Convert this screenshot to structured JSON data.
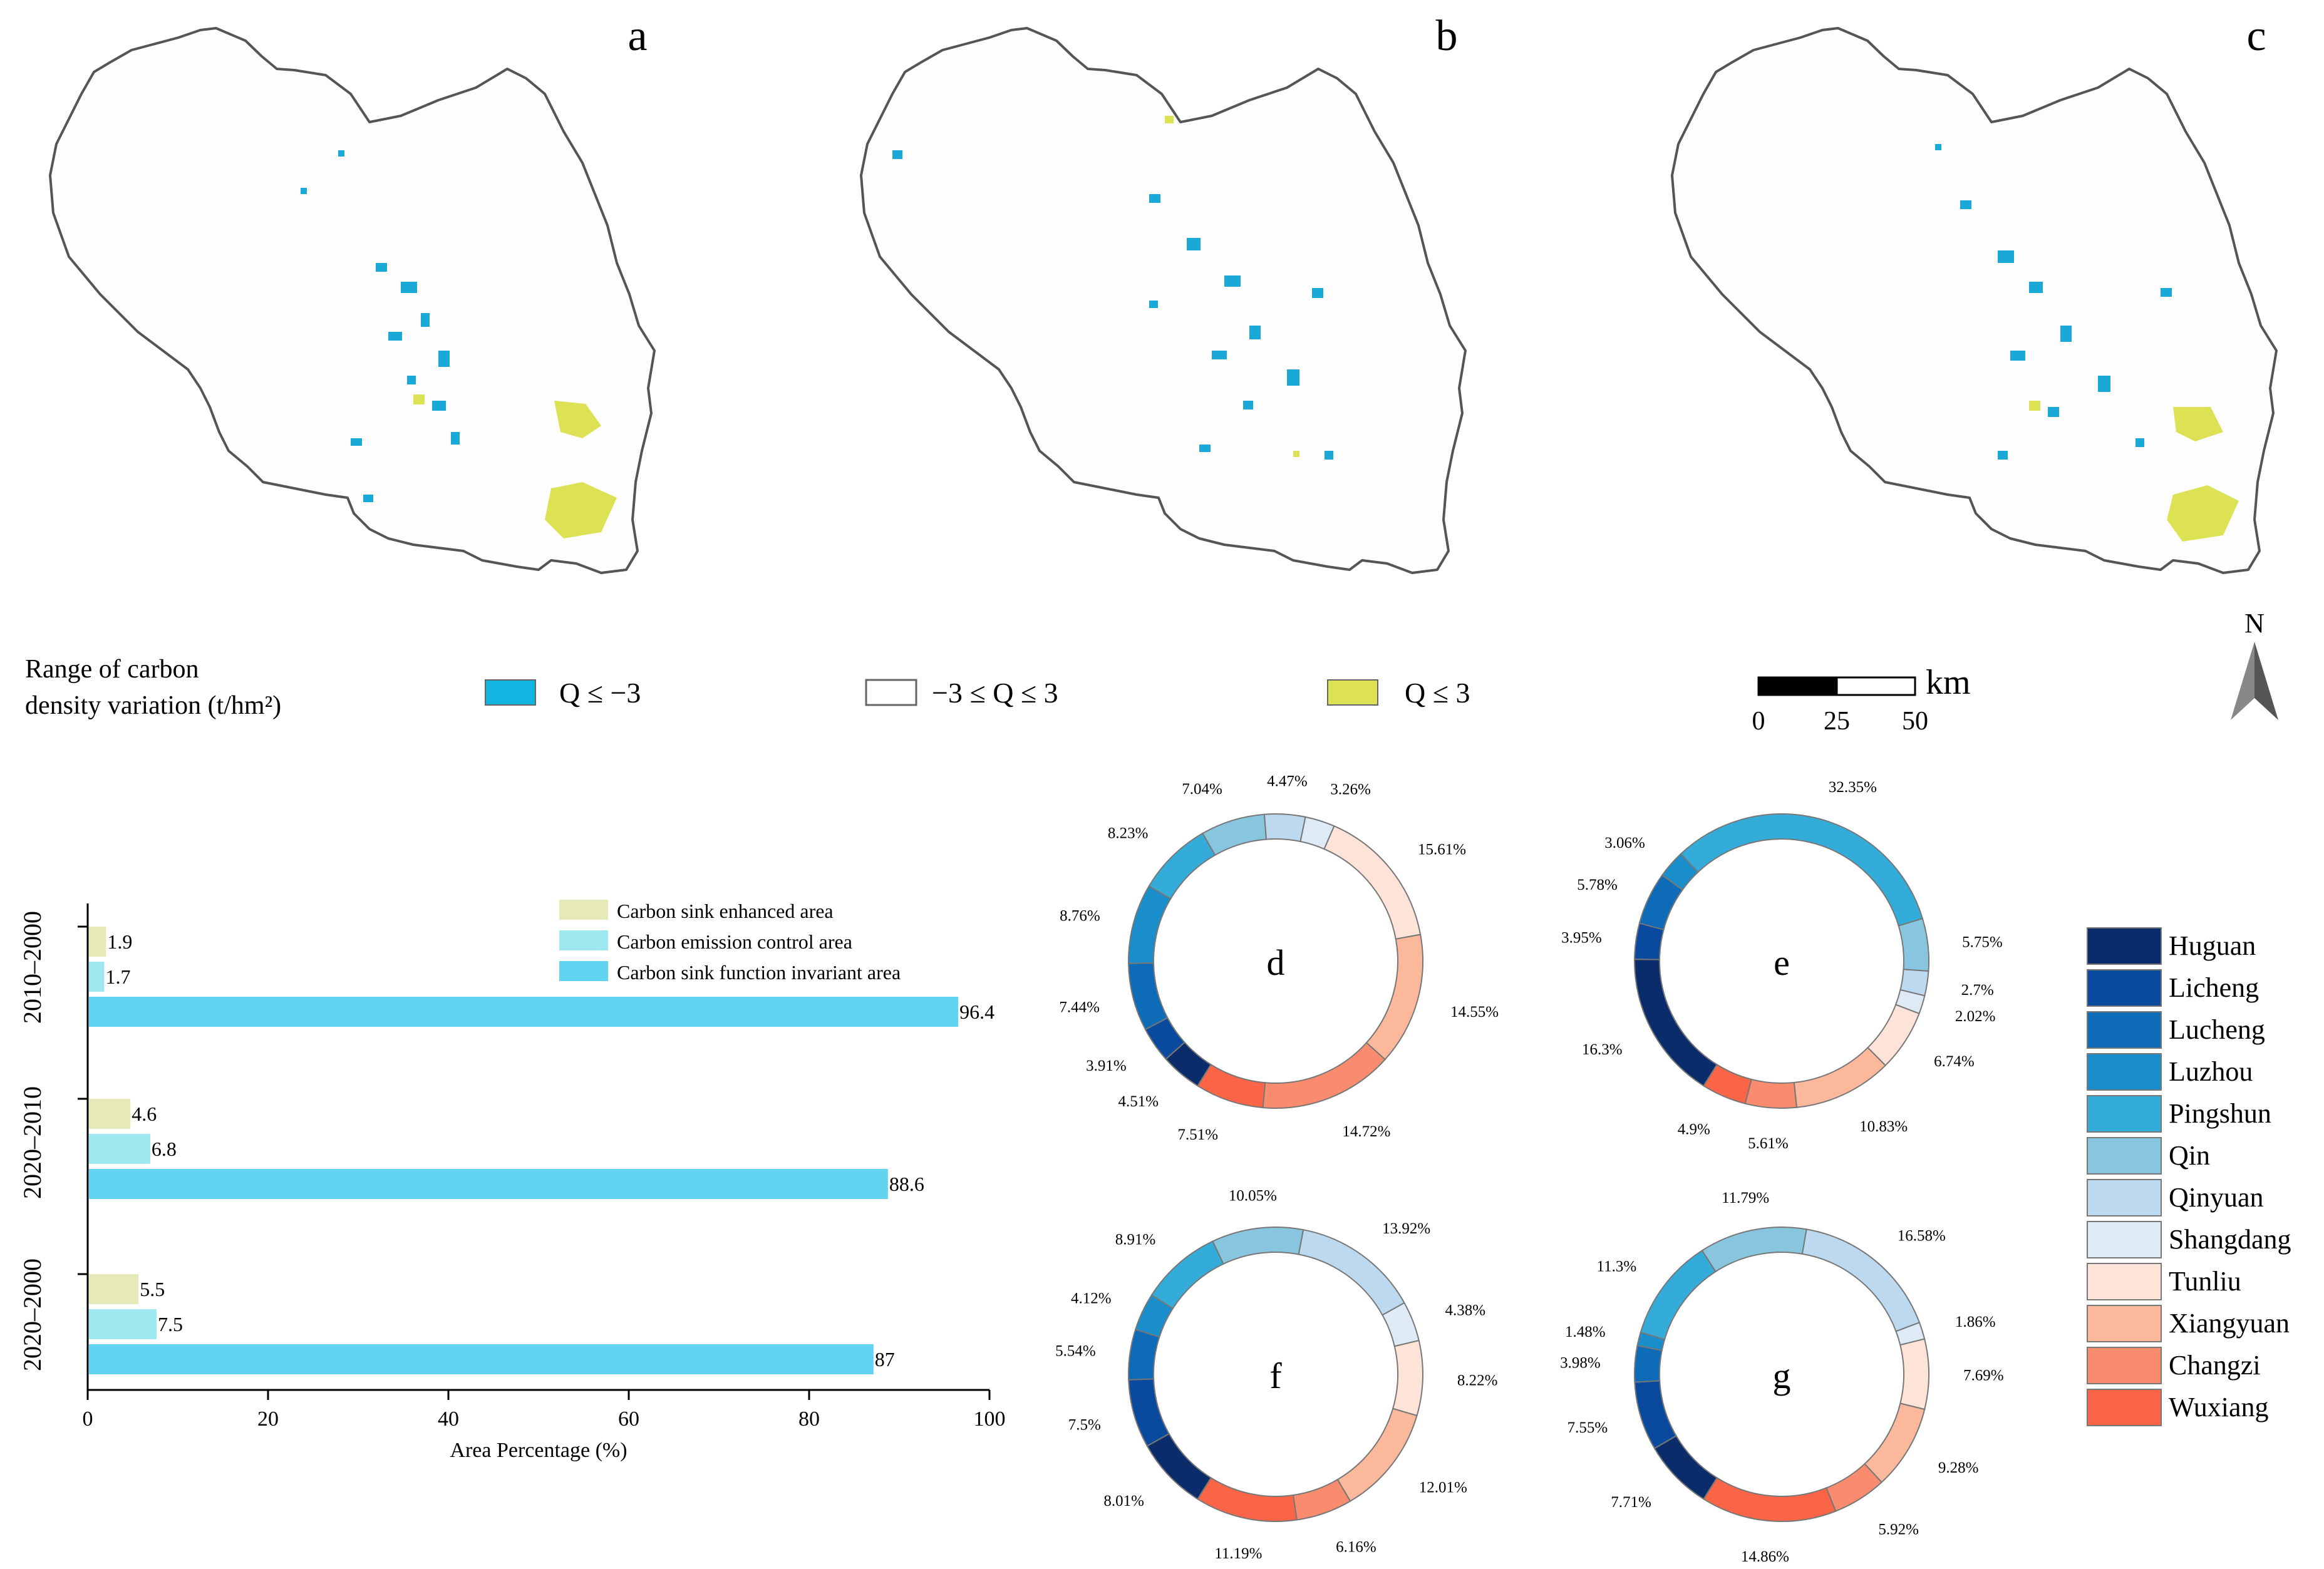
{
  "colors": {
    "decrease": "#1aa9d6",
    "increase": "#dde254",
    "stable_fill": "#ffffff",
    "boundary": "#555555",
    "legend_enhanced": "#e6eab8",
    "legend_emission": "#9fe8ef",
    "legend_invariant": "#62d3f0"
  },
  "maps": {
    "panel_labels": [
      "a",
      "b",
      "c"
    ],
    "legend": {
      "title_line1": "Range of carbon",
      "title_line2": "density variation (t/hm²)",
      "items": [
        {
          "label": "Q ≤ −3",
          "color": "#12b4e0"
        },
        {
          "label": "−3 ≤ Q ≤ 3",
          "color": "#ffffff"
        },
        {
          "label": "Q ≤ 3",
          "color": "#dde254"
        }
      ]
    },
    "scalebar": {
      "unit": "km",
      "ticks": [
        "0",
        "25",
        "50"
      ]
    },
    "north": "N"
  },
  "chart_data": [
    {
      "type": "bar",
      "orientation": "horizontal",
      "title": "",
      "xlabel": "Area Percentage (%)",
      "ylabel": "",
      "xlim": [
        0,
        100
      ],
      "xticks": [
        "0",
        "20",
        "40",
        "60",
        "80",
        "100"
      ],
      "categories": [
        "2010–2000",
        "2020–2010",
        "2020–2000"
      ],
      "series": [
        {
          "name": "Carbon sink enhanced area",
          "color": "#e6eab8",
          "values": [
            1.9,
            4.6,
            5.5
          ]
        },
        {
          "name": "Carbon emission control area",
          "color": "#9fe8ef",
          "values": [
            1.7,
            6.8,
            7.5
          ]
        },
        {
          "name": "Carbon sink function invariant area",
          "color": "#62d3f0",
          "values": [
            96.4,
            88.6,
            87
          ]
        }
      ],
      "value_labels": [
        [
          "1.9",
          "1.7",
          "96.4"
        ],
        [
          "4.6",
          "6.8",
          "88.6"
        ],
        [
          "5.5",
          "7.5",
          "87"
        ]
      ],
      "legend_position": "top-right"
    },
    {
      "type": "pie",
      "variant": "donut",
      "panels": [
        {
          "label": "d",
          "values": [
            4.51,
            3.91,
            7.44,
            8.76,
            8.23,
            7.04,
            4.47,
            3.26,
            15.61,
            14.55,
            14.72,
            7.51
          ],
          "value_labels": [
            "4.51%",
            "3.91%",
            "7.44%",
            "8.76%",
            "8.23%",
            "7.04%",
            "4.47%",
            "3.26%",
            "15.61%",
            "14.55%",
            "14.72%",
            "7.51%"
          ]
        },
        {
          "label": "e",
          "values": [
            16.3,
            3.95,
            5.78,
            3.06,
            32.35,
            5.75,
            2.7,
            2.02,
            6.74,
            10.83,
            5.61,
            4.9
          ],
          "value_labels": [
            "16.3%",
            "3.95%",
            "5.78%",
            "3.06%",
            "32.35%",
            "5.75%",
            "2.7%",
            "2.02%",
            "6.74%",
            "10.83%",
            "5.61%",
            "4.9%"
          ]
        },
        {
          "label": "f",
          "values": [
            8.01,
            7.5,
            5.54,
            4.12,
            8.91,
            10.05,
            13.92,
            4.38,
            8.22,
            12.01,
            6.16,
            11.19
          ],
          "value_labels": [
            "8.01%",
            "7.5%",
            "5.54%",
            "4.12%",
            "8.91%",
            "10.05%",
            "13.92%",
            "4.38%",
            "8.22%",
            "12.01%",
            "6.16%",
            "11.19%"
          ]
        },
        {
          "label": "g",
          "values": [
            7.71,
            7.55,
            3.98,
            1.48,
            11.3,
            11.79,
            16.58,
            1.86,
            7.69,
            9.28,
            5.92,
            14.86
          ],
          "value_labels": [
            "7.71%",
            "7.55%",
            "3.98%",
            "1.48%",
            "11.3%",
            "11.79%",
            "16.58%",
            "1.86%",
            "7.69%",
            "9.28%",
            "5.92%",
            "14.86%"
          ]
        }
      ],
      "legend": [
        {
          "name": "Huguan",
          "color": "#0b2c6b"
        },
        {
          "name": "Licheng",
          "color": "#0a4a9e"
        },
        {
          "name": "Lucheng",
          "color": "#0d6bb8"
        },
        {
          "name": "Luzhou",
          "color": "#1a8ecb"
        },
        {
          "name": "Pingshun",
          "color": "#33acd9"
        },
        {
          "name": "Qin",
          "color": "#88c6e0"
        },
        {
          "name": "Qinyuan",
          "color": "#bcd9ef"
        },
        {
          "name": "Shangdang",
          "color": "#deebf6"
        },
        {
          "name": "Tunliu",
          "color": "#fde3d8"
        },
        {
          "name": "Xiangyuan",
          "color": "#fbb89b"
        },
        {
          "name": "Changzi",
          "color": "#f98c6e"
        },
        {
          "name": "Wuxiang",
          "color": "#fb6547"
        }
      ]
    }
  ]
}
